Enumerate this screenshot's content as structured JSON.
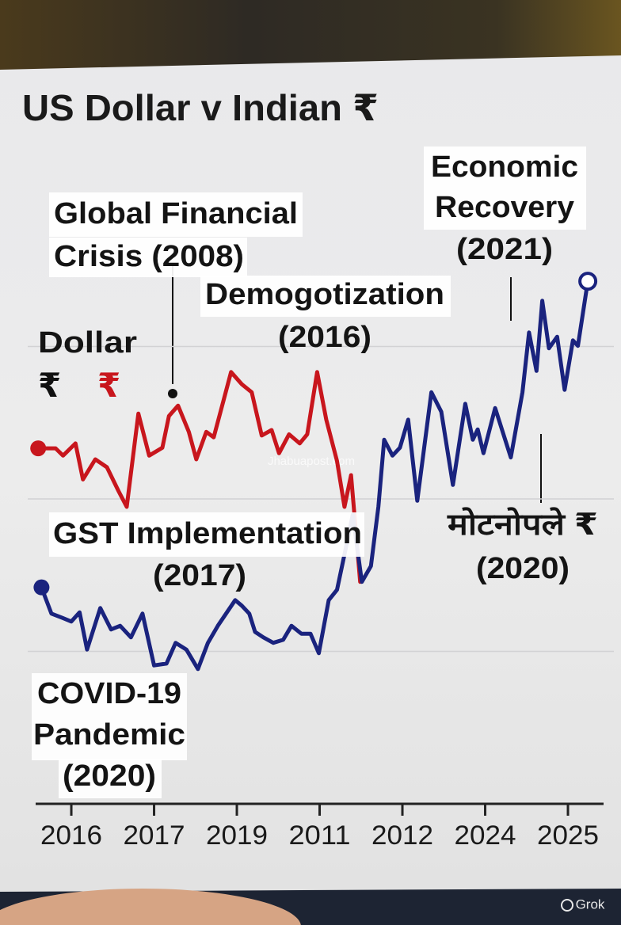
{
  "chart_data": {
    "type": "line",
    "title": "US Dollar v Indian ₹",
    "categories": [
      "2016",
      "2017",
      "2019",
      "2011",
      "2012",
      "2024",
      "2025"
    ],
    "xlim": [
      -0.45,
      6.35
    ],
    "ylim": [
      0,
      100
    ],
    "yticks": [
      25,
      50,
      75
    ],
    "grid": true,
    "legend": {
      "title": "Dollar",
      "entries": [
        {
          "label": "₹",
          "color": "#111111"
        },
        {
          "label": "₹",
          "color": "#c8161d"
        }
      ]
    },
    "series": [
      {
        "color": "#c8161d",
        "x": [
          -0.4,
          -0.19,
          -0.1,
          0.05,
          0.14,
          0.29,
          0.43,
          0.57,
          0.67,
          0.81,
          0.94,
          1.1,
          1.18,
          1.29,
          1.42,
          1.51,
          1.63,
          1.72,
          1.84,
          1.93,
          2.06,
          2.18,
          2.3,
          2.42,
          2.51,
          2.63,
          2.76,
          2.85,
          2.97,
          3.08,
          3.21,
          3.3,
          3.38,
          3.49
        ],
        "values": [
          58.3,
          58.3,
          57.1,
          59.1,
          53.2,
          56.5,
          55.2,
          51.3,
          48.7,
          64.0,
          57.1,
          58.4,
          63.6,
          65.3,
          61.0,
          56.5,
          61.0,
          60.1,
          66.2,
          70.8,
          68.8,
          67.5,
          60.4,
          61.3,
          57.5,
          60.6,
          59.1,
          60.6,
          70.8,
          63.0,
          56.2,
          48.7,
          53.9,
          36.4
        ]
      },
      {
        "color": "#1a237e",
        "x": [
          -0.36,
          -0.24,
          -0.11,
          0.0,
          0.1,
          0.19,
          0.35,
          0.48,
          0.59,
          0.72,
          0.86,
          1.0,
          1.15,
          1.26,
          1.39,
          1.53,
          1.65,
          1.77,
          1.87,
          1.98,
          2.06,
          2.15,
          2.22,
          2.32,
          2.44,
          2.56,
          2.66,
          2.78,
          2.89,
          2.99,
          3.11,
          3.21,
          3.3,
          3.4,
          3.51,
          3.62,
          3.71,
          3.78,
          3.88,
          3.97,
          4.07,
          4.18,
          4.35,
          4.47,
          4.61,
          4.76,
          4.85,
          4.91,
          4.98,
          5.12,
          5.31,
          5.45,
          5.53,
          5.62,
          5.69,
          5.77,
          5.87,
          5.96,
          6.06,
          6.12,
          6.24
        ],
        "values": [
          35.5,
          31.2,
          30.5,
          29.9,
          31.4,
          25.3,
          32.1,
          28.6,
          29.2,
          27.3,
          31.2,
          22.7,
          23.0,
          26.4,
          25.3,
          22.1,
          26.4,
          29.2,
          31.2,
          33.4,
          32.5,
          31.2,
          28.2,
          27.3,
          26.4,
          26.9,
          29.2,
          27.9,
          27.9,
          24.7,
          33.4,
          35.1,
          40.9,
          47.4,
          36.4,
          39.0,
          48.7,
          59.7,
          57.1,
          58.4,
          63.0,
          49.7,
          67.5,
          64.3,
          52.3,
          65.6,
          59.7,
          61.4,
          57.5,
          64.9,
          56.8,
          67.5,
          77.3,
          71.0,
          82.5,
          74.7,
          76.6,
          67.9,
          76.0,
          75.1,
          85.7
        ]
      }
    ],
    "annotations": [
      {
        "lines": [
          "Global Financial",
          "Crisis (2008)"
        ]
      },
      {
        "lines": [
          "Demogotization",
          "(2016)"
        ]
      },
      {
        "lines": [
          "Economic",
          "Recovery",
          "(2021)"
        ]
      },
      {
        "lines": [
          "GST Implementation",
          "(2017)"
        ]
      },
      {
        "lines": [
          "COVID-19",
          "Pandemic",
          "(2020)"
        ]
      },
      {
        "lines": [
          "मोटनोपले ₹",
          "(2020)"
        ]
      }
    ]
  },
  "watermark": "Jhabuapost.com",
  "badge": "Grok"
}
